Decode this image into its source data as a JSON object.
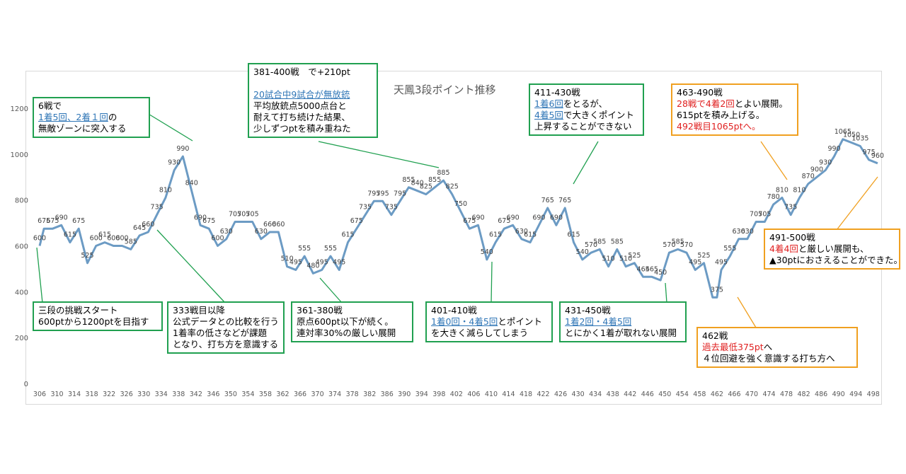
{
  "chart_data": {
    "type": "line",
    "title": "天鳳3段ポイント推移",
    "ylim": [
      0,
      1200
    ],
    "yticks": [
      0,
      200,
      400,
      600,
      800,
      1000,
      1200
    ],
    "xticks": [
      306,
      310,
      314,
      318,
      322,
      326,
      330,
      334,
      338,
      342,
      346,
      350,
      354,
      358,
      362,
      366,
      370,
      374,
      378,
      382,
      386,
      390,
      394,
      398,
      402,
      406,
      410,
      414,
      418,
      422,
      426,
      430,
      434,
      438,
      442,
      446,
      450,
      454,
      458,
      462,
      466,
      470,
      474,
      478,
      482,
      486,
      490,
      494,
      498
    ],
    "xlim": [
      306,
      500
    ],
    "grid": false,
    "series_color": "#6c9bc4",
    "x": [
      306,
      307,
      309,
      311,
      313,
      315,
      317,
      319,
      321,
      323,
      325,
      327,
      329,
      331,
      333,
      335,
      337,
      339,
      341,
      343,
      345,
      347,
      349,
      351,
      353,
      355,
      357,
      359,
      361,
      363,
      365,
      367,
      369,
      371,
      373,
      375,
      377,
      379,
      381,
      383,
      385,
      387,
      389,
      391,
      393,
      395,
      397,
      399,
      401,
      403,
      405,
      407,
      409,
      411,
      413,
      415,
      417,
      419,
      421,
      423,
      425,
      427,
      429,
      431,
      433,
      435,
      437,
      439,
      441,
      443,
      445,
      447,
      449,
      451,
      453,
      455,
      457,
      459,
      461,
      462,
      463,
      465,
      467,
      469,
      471,
      473,
      475,
      477,
      479,
      481,
      483,
      485,
      487,
      489,
      491,
      493,
      495,
      497,
      499
    ],
    "values": [
      600,
      675,
      675,
      690,
      615,
      675,
      525,
      600,
      615,
      600,
      600,
      585,
      645,
      660,
      735,
      810,
      930,
      990,
      840,
      690,
      675,
      600,
      630,
      705,
      705,
      705,
      630,
      660,
      660,
      510,
      495,
      555,
      480,
      495,
      555,
      495,
      615,
      675,
      735,
      795,
      795,
      735,
      795,
      855,
      840,
      825,
      855,
      885,
      825,
      750,
      675,
      690,
      540,
      615,
      675,
      690,
      630,
      615,
      690,
      765,
      690,
      765,
      615,
      540,
      570,
      585,
      510,
      585,
      510,
      525,
      465,
      465,
      450,
      570,
      585,
      570,
      495,
      525,
      375,
      375,
      495,
      555,
      630,
      630,
      705,
      705,
      780,
      810,
      735,
      810,
      870,
      900,
      930,
      990,
      1065,
      1050,
      1035,
      975,
      960
    ],
    "labels": [
      "600",
      "675",
      "675",
      "690",
      "615",
      "675",
      "525",
      "600",
      "615",
      "600",
      "600",
      "585",
      "645",
      "660",
      "735",
      "810",
      "930",
      "990",
      "840",
      "690",
      "675",
      "600",
      "630",
      "705",
      "705",
      "705",
      "630",
      "660",
      "660",
      "510",
      "495",
      "555",
      "480",
      "495",
      "555",
      "495",
      "615",
      "675",
      "735",
      "795",
      "795",
      "735",
      "795",
      "855",
      "840",
      "825",
      "855",
      "885",
      "825",
      "750",
      "675",
      "690",
      "540",
      "615",
      "675",
      "690",
      "630",
      "615",
      "690",
      "765",
      "690",
      "765",
      "615",
      "540",
      "570",
      "585",
      "510",
      "585",
      "510",
      "525",
      "465",
      "465",
      "450",
      "570",
      "585",
      "570",
      "495",
      "525",
      "",
      "375",
      "495",
      "555",
      "630",
      "630",
      "705",
      "705",
      "780",
      "810",
      "735",
      "810",
      "870",
      "900",
      "930",
      "990",
      "1065",
      "1050",
      "1035",
      "975",
      "960"
    ]
  },
  "annotations": [
    {
      "lines": [
        [
          "6戦で"
        ],
        [
          "u:1着5回、2着１回",
          "の"
        ],
        [
          "無敵ゾーンに突入する"
        ]
      ]
    },
    {
      "lines": [
        [
          "381-400戦　で+210pt"
        ],
        [
          ""
        ],
        [
          "u:20試合中9試合が無放銃"
        ],
        [
          "平均放銃点5000点台と"
        ],
        [
          "耐えて打ち続けた結果、"
        ],
        [
          "少しずつptを積み重ねた"
        ]
      ]
    },
    {
      "lines": [
        [
          "411-430戦"
        ],
        [
          "u:1着6回",
          "をとるが、"
        ],
        [
          "u:4着5回",
          "で大きくポイント"
        ],
        [
          "上昇することができない"
        ]
      ]
    },
    {
      "lines": [
        [
          "463-490戦"
        ],
        [
          "r:28戦で4着2回",
          "とよい展開。"
        ],
        [
          "615ptを積み上げる。"
        ],
        [
          "r:492戦目1065ptへ。"
        ]
      ]
    },
    {
      "lines": [
        [
          "三段の挑戦スタート"
        ],
        [
          "600ptから1200ptを目指す"
        ]
      ]
    },
    {
      "lines": [
        [
          "333戦目以降"
        ],
        [
          "公式データとの比較を行う"
        ],
        [
          "1着率の低さなどが課題"
        ],
        [
          "となり、打ち方を意識する"
        ]
      ]
    },
    {
      "lines": [
        [
          "361-380戦"
        ],
        [
          "原点600pt以下が続く。"
        ],
        [
          "連対率30%の厳しい展開"
        ]
      ]
    },
    {
      "lines": [
        [
          "401-410戦"
        ],
        [
          "u:1着0回・4着5回",
          "とポイント"
        ],
        [
          "を大きく減らしてしまう"
        ]
      ]
    },
    {
      "lines": [
        [
          "431-450戦"
        ],
        [
          "u:1着2回・4着5回"
        ],
        [
          "とにかく1着が取れない展開"
        ]
      ]
    },
    {
      "lines": [
        [
          "491-500戦"
        ],
        [
          "r:4着4回",
          "と厳しい展開も、"
        ],
        [
          "▲30ptにおさえることができた。"
        ]
      ]
    },
    {
      "lines": [
        [
          "462戦"
        ],
        [
          "r:過去最低375pt",
          "へ"
        ],
        [
          "４位回避を強く意識する打ち方へ"
        ]
      ]
    }
  ]
}
